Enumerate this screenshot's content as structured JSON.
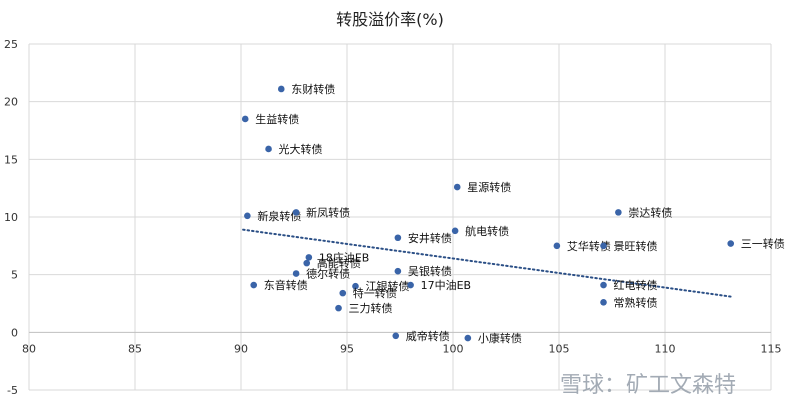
{
  "chart_data": {
    "type": "scatter",
    "title": "转股溢价率(%)",
    "xlabel": "",
    "ylabel": "",
    "xlim": [
      80,
      115
    ],
    "ylim": [
      -5,
      25
    ],
    "xticks": [
      80,
      85,
      90,
      95,
      100,
      105,
      110,
      115
    ],
    "yticks": [
      -5,
      0,
      5,
      10,
      15,
      20,
      25
    ],
    "grid": "both",
    "legend": "none",
    "marker_color": "#3a64a8",
    "trend_color": "#2b4f86",
    "trendline": {
      "style": "dotted",
      "x": [
        90.1,
        113.1
      ],
      "y": [
        8.9,
        3.1
      ]
    },
    "points": [
      {
        "x": 91.9,
        "y": 21.1,
        "label": "东财转债"
      },
      {
        "x": 90.2,
        "y": 18.5,
        "label": "生益转债"
      },
      {
        "x": 91.3,
        "y": 15.9,
        "label": "光大转债"
      },
      {
        "x": 100.2,
        "y": 12.6,
        "label": "星源转债"
      },
      {
        "x": 90.3,
        "y": 10.1,
        "label": "新泉转债"
      },
      {
        "x": 92.6,
        "y": 10.4,
        "label": "新凤转债"
      },
      {
        "x": 107.8,
        "y": 10.4,
        "label": "崇达转债"
      },
      {
        "x": 97.4,
        "y": 8.2,
        "label": "安井转债"
      },
      {
        "x": 100.1,
        "y": 8.8,
        "label": "航电转债"
      },
      {
        "x": 104.9,
        "y": 7.5,
        "label": "艾华转债"
      },
      {
        "x": 107.1,
        "y": 7.5,
        "label": "景旺转债"
      },
      {
        "x": 113.1,
        "y": 7.7,
        "label": "三一转债"
      },
      {
        "x": 93.2,
        "y": 6.5,
        "label": "18庄油EB"
      },
      {
        "x": 93.1,
        "y": 6.0,
        "label": "高能转债"
      },
      {
        "x": 92.6,
        "y": 5.1,
        "label": "德尔转债"
      },
      {
        "x": 97.4,
        "y": 5.3,
        "label": "吴银转债"
      },
      {
        "x": 90.6,
        "y": 4.1,
        "label": "东音转债"
      },
      {
        "x": 95.4,
        "y": 4.0,
        "label": "江银转债"
      },
      {
        "x": 98.0,
        "y": 4.1,
        "label": "17中油EB"
      },
      {
        "x": 94.8,
        "y": 3.4,
        "label": "特一转债"
      },
      {
        "x": 107.1,
        "y": 4.1,
        "label": "红电转债"
      },
      {
        "x": 107.1,
        "y": 2.6,
        "label": "常熟转债"
      },
      {
        "x": 94.6,
        "y": 2.1,
        "label": "三力转债"
      },
      {
        "x": 97.3,
        "y": -0.3,
        "label": "威帝转债"
      },
      {
        "x": 100.7,
        "y": -0.5,
        "label": "小康转债"
      }
    ]
  },
  "watermark": {
    "text": "雪球：矿工文森特"
  }
}
